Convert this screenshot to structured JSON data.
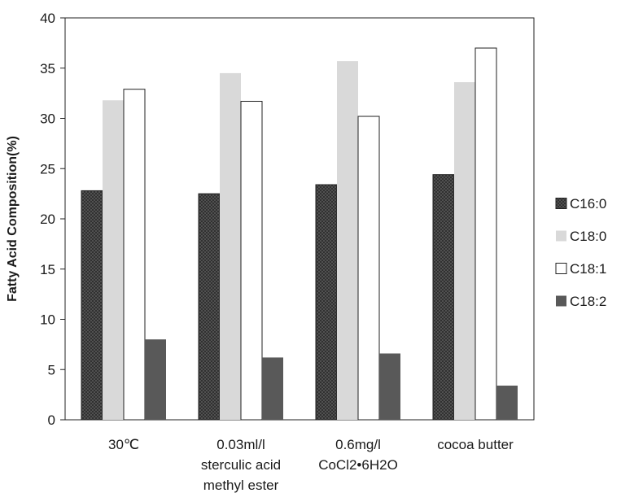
{
  "chart_data": {
    "type": "bar",
    "categories": [
      [
        "30℃"
      ],
      [
        "0.03ml/l",
        "sterculic acid",
        "methyl ester"
      ],
      [
        "0.6mg/l",
        "CoCl2•6H2O"
      ],
      [
        "cocoa butter"
      ]
    ],
    "series": [
      {
        "name": "C16:0",
        "values": [
          22.8,
          22.5,
          23.4,
          24.4
        ],
        "color": "#4a4a4a",
        "pattern": "crosshatch"
      },
      {
        "name": "C18:0",
        "values": [
          31.8,
          34.5,
          35.7,
          33.6
        ],
        "color": "#d9d9d9",
        "pattern": "solid"
      },
      {
        "name": "C18:1",
        "values": [
          32.9,
          31.7,
          30.2,
          37.0
        ],
        "color": "#ffffff",
        "pattern": "outline"
      },
      {
        "name": "C18:2",
        "values": [
          8.0,
          6.2,
          6.6,
          3.4
        ],
        "color": "#595959",
        "pattern": "solid"
      }
    ],
    "title": "",
    "xlabel": "",
    "ylabel": "Fatty Acid Composition(%)",
    "ylim": [
      0,
      40
    ],
    "yticks": [
      0,
      5,
      10,
      15,
      20,
      25,
      30,
      35,
      40
    ],
    "grid": false,
    "legend": "right"
  }
}
